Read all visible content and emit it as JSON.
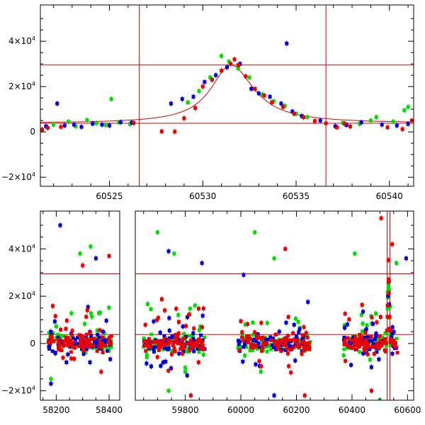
{
  "chart_data": [
    {
      "type": "scatter",
      "title": "",
      "xlabel": "",
      "ylabel": "",
      "xlim": [
        60521.3,
        60541.3
      ],
      "ylim": [
        -24000,
        56000
      ],
      "x_ticks": [
        60525,
        60530,
        60535,
        60540
      ],
      "y_ticks": [
        {
          "value": -20000,
          "mantissa": "−2×10",
          "exp": "4"
        },
        {
          "value": 0,
          "mantissa": "0",
          "exp": ""
        },
        {
          "value": 20000,
          "mantissa": "2×10",
          "exp": "4"
        },
        {
          "value": 40000,
          "mantissa": "4×10",
          "exp": "4"
        }
      ],
      "hlines": [
        29500,
        3800
      ],
      "vlines": [
        60526.6,
        60536.6
      ],
      "model_curve": {
        "baseline": 3800,
        "peak_x": 60531.5,
        "peak_y": 29500,
        "rise_width": 1.3,
        "fall_width": 1.5
      },
      "series": [
        {
          "color": "#00dd00",
          "points": [
            [
              60522.0,
              3200
            ],
            [
              60522.8,
              4500
            ],
            [
              60523.2,
              2500
            ],
            [
              60523.8,
              5200
            ],
            [
              60524.3,
              3800
            ],
            [
              60524.8,
              3000
            ],
            [
              60525.1,
              14500
            ],
            [
              60525.5,
              4200
            ],
            [
              60526.1,
              3500
            ],
            [
              60529.2,
              13000
            ],
            [
              60529.8,
              18000
            ],
            [
              60530.4,
              24000
            ],
            [
              60531.0,
              33500
            ],
            [
              60531.4,
              31000
            ],
            [
              60531.9,
              28000
            ],
            [
              60532.5,
              24000
            ],
            [
              60533.2,
              16500
            ],
            [
              60533.8,
              13500
            ],
            [
              60534.4,
              11500
            ],
            [
              60535.0,
              8000
            ],
            [
              60535.6,
              6500
            ],
            [
              60537.5,
              4000
            ],
            [
              60538.4,
              3600
            ],
            [
              60539.0,
              5000
            ],
            [
              60539.3,
              6500
            ],
            [
              60540.2,
              4500
            ],
            [
              60540.8,
              9500
            ],
            [
              60541.0,
              11000
            ]
          ]
        },
        {
          "color": "#0000dd",
          "points": [
            [
              60521.6,
              2500
            ],
            [
              60522.2,
              12500
            ],
            [
              60522.6,
              2800
            ],
            [
              60523.1,
              3200
            ],
            [
              60523.5,
              2200
            ],
            [
              60524.1,
              3600
            ],
            [
              60524.6,
              3200
            ],
            [
              60525.0,
              2800
            ],
            [
              60525.6,
              4300
            ],
            [
              60526.2,
              4100
            ],
            [
              60528.3,
              12500
            ],
            [
              60528.9,
              14500
            ],
            [
              60529.5,
              15500
            ],
            [
              60530.1,
              22000
            ],
            [
              60530.7,
              25000
            ],
            [
              60531.3,
              28500
            ],
            [
              60532.0,
              30000
            ],
            [
              60532.6,
              19000
            ],
            [
              60533.0,
              17000
            ],
            [
              60533.6,
              15500
            ],
            [
              60534.2,
              12500
            ],
            [
              60534.5,
              39000
            ],
            [
              60534.8,
              9000
            ],
            [
              60535.3,
              7000
            ],
            [
              60536.3,
              5000
            ],
            [
              60537.1,
              2500
            ],
            [
              60537.7,
              3000
            ],
            [
              60538.5,
              4200
            ],
            [
              60539.6,
              3200
            ],
            [
              60540.4,
              2800
            ],
            [
              60541.0,
              3500
            ]
          ]
        },
        {
          "color": "#ee0000",
          "points": [
            [
              60521.4,
              1000
            ],
            [
              60521.7,
              1800
            ],
            [
              60522.4,
              2200
            ],
            [
              60526.3,
              3900
            ],
            [
              60527.8,
              200
            ],
            [
              60528.5,
              100
            ],
            [
              60529.0,
              6000
            ],
            [
              60529.6,
              10500
            ],
            [
              60530.0,
              20000
            ],
            [
              60530.5,
              23000
            ],
            [
              60531.0,
              27000
            ],
            [
              60531.5,
              30000
            ],
            [
              60531.7,
              32000
            ],
            [
              60531.9,
              29500
            ],
            [
              60532.3,
              24500
            ],
            [
              60532.8,
              19000
            ],
            [
              60533.3,
              16000
            ],
            [
              60533.7,
              13000
            ],
            [
              60534.3,
              11000
            ],
            [
              60534.9,
              8000
            ],
            [
              60535.4,
              6500
            ],
            [
              60536.0,
              4800
            ],
            [
              60536.6,
              3800
            ],
            [
              60537.2,
              2000
            ],
            [
              60537.6,
              3600
            ],
            [
              60537.9,
              2400
            ],
            [
              60539.9,
              2000
            ],
            [
              60540.7,
              1200
            ],
            [
              60541.2,
              5000
            ]
          ]
        }
      ]
    },
    {
      "type": "scatter",
      "title": "",
      "xlabel": "",
      "ylabel": "",
      "broken_x_axis": true,
      "segments": [
        {
          "xlim": [
            58140,
            58440
          ],
          "x_ticks": [
            58200,
            58400
          ]
        },
        {
          "xlim": [
            59620,
            60622
          ],
          "x_ticks": [
            59800,
            60000,
            60200,
            60400,
            60600
          ]
        }
      ],
      "ylim": [
        -24000,
        56000
      ],
      "y_ticks": [
        {
          "value": -20000,
          "mantissa": "−2×10",
          "exp": "4"
        },
        {
          "value": 0,
          "mantissa": "0",
          "exp": ""
        },
        {
          "value": 20000,
          "mantissa": "2×10",
          "exp": "4"
        },
        {
          "value": 40000,
          "mantissa": "4×10",
          "exp": "4"
        }
      ],
      "hlines": [
        29500,
        3800
      ],
      "vlines": [
        60526.6,
        60536.6
      ],
      "observing_seasons": [
        {
          "x_range": [
            58170,
            58410
          ],
          "peak_at": null
        },
        {
          "x_range": [
            59650,
            59870
          ],
          "peak_at": null
        },
        {
          "x_range": [
            59990,
            60250
          ],
          "peak_at": null
        },
        {
          "x_range": [
            60370,
            60565
          ],
          "peak_at": 60531.5
        }
      ],
      "series": [
        {
          "color": "#00dd00",
          "scatter_points_per_season": 70,
          "outliers": [
            [
              58330,
              41000
            ],
            [
              58290,
              38000
            ],
            [
              59700,
              47000
            ],
            [
              59760,
              38000
            ],
            [
              60050,
              47000
            ],
            [
              60120,
              36000
            ],
            [
              60410,
              38000
            ],
            [
              60500,
              -24000
            ],
            [
              60560,
              34000
            ],
            [
              59740,
              -20000
            ],
            [
              58180,
              -15000
            ]
          ]
        },
        {
          "color": "#0000dd",
          "scatter_points_per_season": 70,
          "outliers": [
            [
              58215,
              50000
            ],
            [
              58350,
              36000
            ],
            [
              59740,
              39000
            ],
            [
              59860,
              34000
            ],
            [
              60010,
              29000
            ],
            [
              60120,
              -22000
            ],
            [
              60595,
              36000
            ],
            [
              58180,
              -17000
            ],
            [
              60470,
              -10000
            ]
          ]
        },
        {
          "color": "#ee0000",
          "scatter_points_per_season": 90,
          "outliers": [
            [
              58400,
              37000
            ],
            [
              58300,
              33000
            ],
            [
              60505,
              53000
            ],
            [
              60545,
              42000
            ],
            [
              60230,
              -22000
            ],
            [
              59820,
              -22000
            ],
            [
              60160,
              40000
            ],
            [
              58370,
              -12000
            ],
            [
              60470,
              -20000
            ]
          ]
        }
      ]
    }
  ]
}
